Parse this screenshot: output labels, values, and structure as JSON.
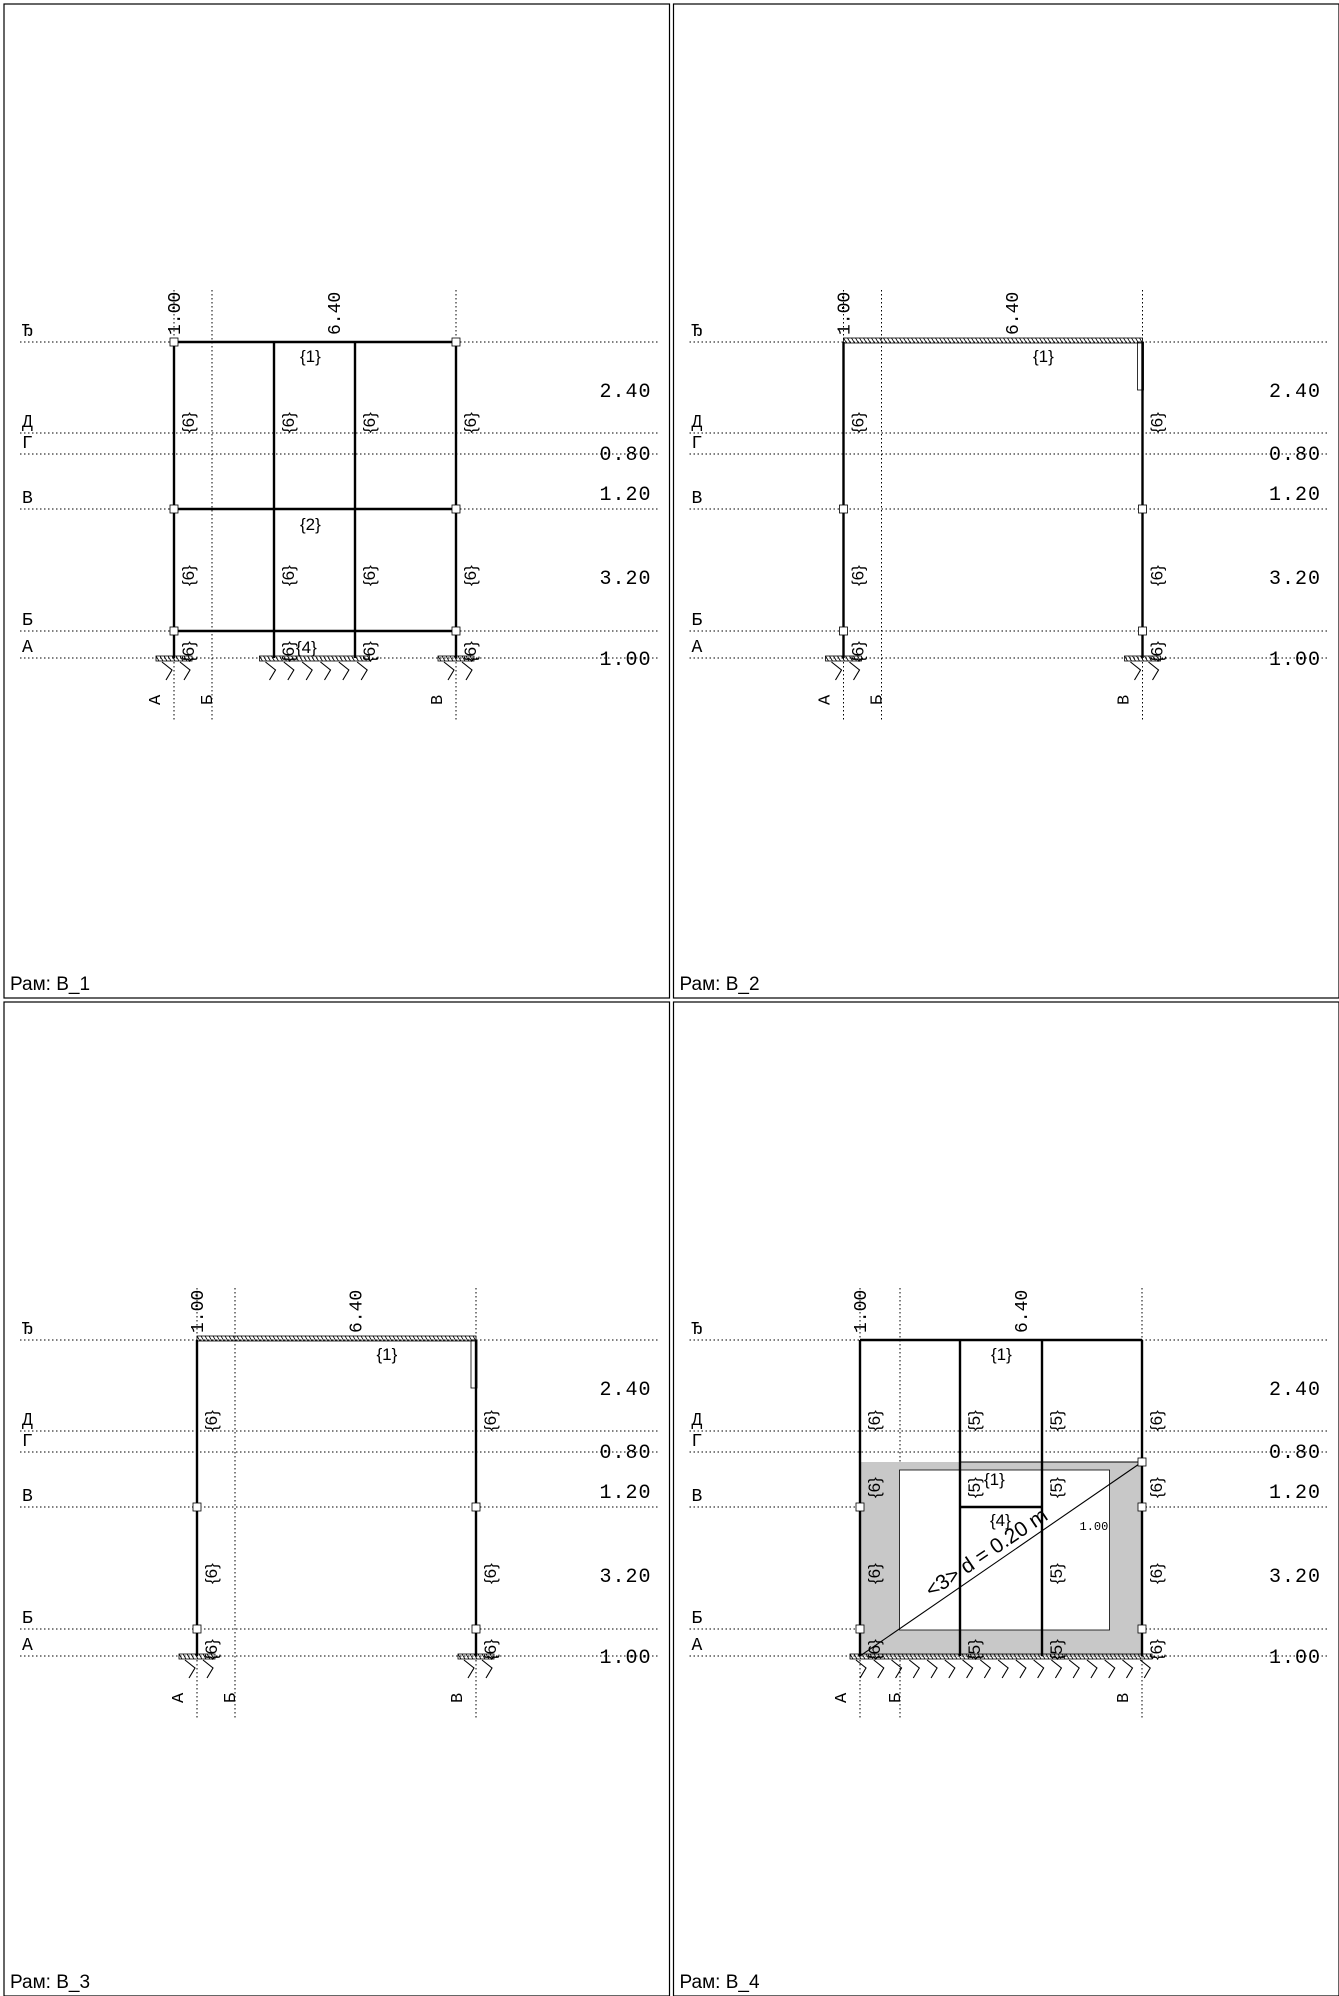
{
  "levels": [
    {
      "label": "Ђ"
    },
    {
      "label": "Д",
      "height": "2.40"
    },
    {
      "label": "Г",
      "height": "0.80"
    },
    {
      "label": "В",
      "height": "1.20"
    },
    {
      "label": "Б",
      "height": "3.20"
    },
    {
      "label": "А",
      "height": "1.00"
    }
  ],
  "axes": {
    "a": "А",
    "b": "Б",
    "c": "В"
  },
  "dims": {
    "top_left": "1.00",
    "top_right": "6.40"
  },
  "member_labels": {
    "m1": "{1}",
    "m2": "{2}",
    "m4": "{4}",
    "m5": "{5}",
    "m6": "{6}"
  },
  "panels": [
    {
      "title": "Рам: В_1"
    },
    {
      "title": "Рам: В_2"
    },
    {
      "title": "Рам: В_3"
    },
    {
      "title": "Рам: В_4"
    }
  ],
  "wall": {
    "note": "<3> d = 0.20 m",
    "opening_dim": "1.00"
  }
}
